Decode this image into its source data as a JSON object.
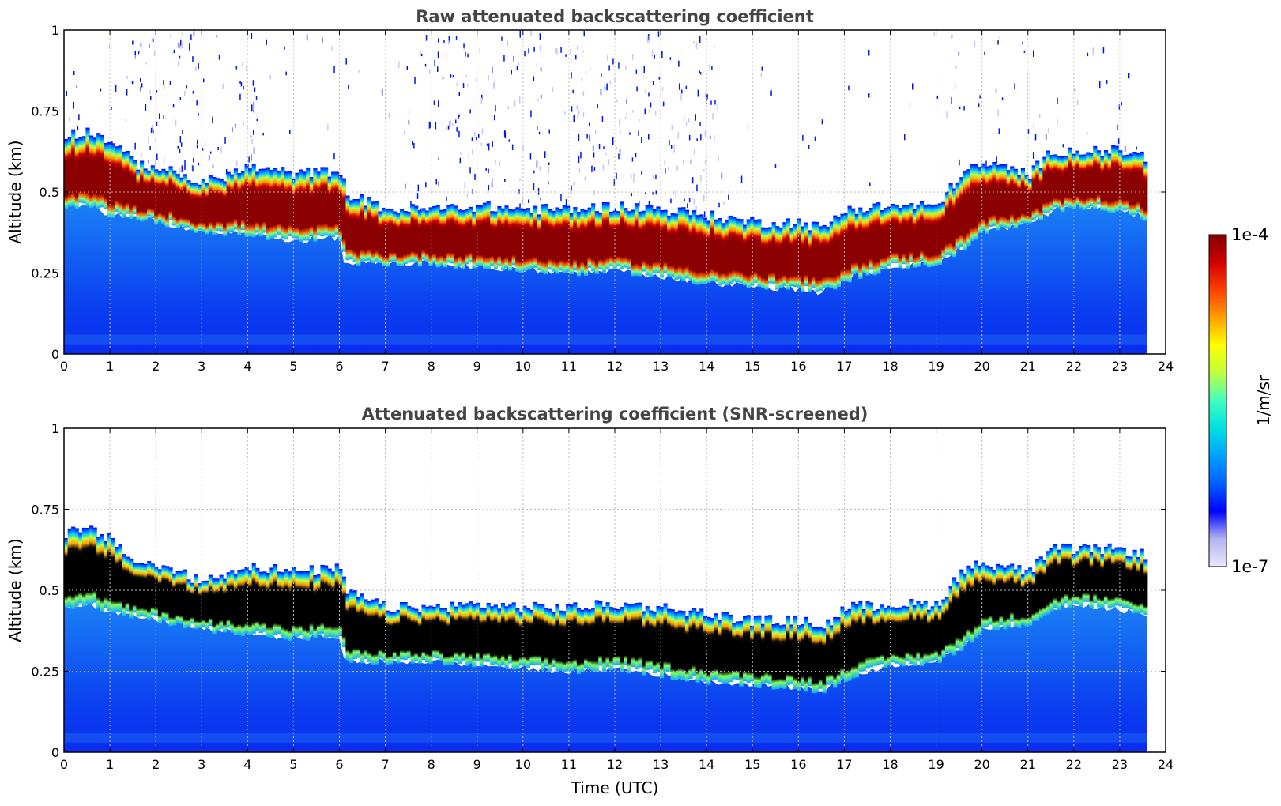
{
  "chart_data": [
    {
      "type": "heatmap",
      "title": "Raw attenuated backscattering coefficient",
      "xlabel": "",
      "ylabel": "Altitude (km)",
      "xlim": [
        0,
        24
      ],
      "ylim": [
        0,
        1
      ],
      "xticks": [
        "0",
        "1",
        "2",
        "3",
        "4",
        "5",
        "6",
        "7",
        "8",
        "9",
        "10",
        "11",
        "12",
        "13",
        "14",
        "15",
        "16",
        "17",
        "18",
        "19",
        "20",
        "21",
        "22",
        "23",
        "24"
      ],
      "yticks": [
        "0",
        "0.25",
        "0.5",
        "0.75",
        "1"
      ],
      "grid": true,
      "data_end_time": 23.6,
      "layer_top_km": {
        "time": [
          0,
          0.5,
          1,
          1.5,
          2,
          3,
          4,
          5,
          6,
          6.1,
          7,
          8,
          9,
          10,
          11,
          12,
          13,
          14,
          15,
          16,
          16.5,
          17,
          18,
          19,
          19.5,
          20,
          21,
          21.5,
          22,
          23,
          23.6
        ],
        "value": [
          0.67,
          0.68,
          0.65,
          0.58,
          0.57,
          0.52,
          0.57,
          0.55,
          0.56,
          0.49,
          0.44,
          0.44,
          0.45,
          0.44,
          0.44,
          0.45,
          0.44,
          0.42,
          0.4,
          0.4,
          0.38,
          0.44,
          0.45,
          0.45,
          0.55,
          0.58,
          0.55,
          0.62,
          0.62,
          0.62,
          0.6
        ]
      },
      "layer_bottom_km": {
        "time": [
          0,
          0.5,
          1,
          1.5,
          2,
          3,
          4,
          5,
          6,
          6.1,
          7,
          8,
          9,
          10,
          11,
          12,
          13,
          14,
          15,
          16,
          16.5,
          17,
          18,
          19,
          19.5,
          20,
          21,
          21.5,
          22,
          23,
          23.6
        ],
        "value": [
          0.45,
          0.46,
          0.43,
          0.42,
          0.41,
          0.38,
          0.37,
          0.35,
          0.36,
          0.28,
          0.28,
          0.28,
          0.27,
          0.26,
          0.25,
          0.26,
          0.24,
          0.22,
          0.21,
          0.2,
          0.19,
          0.23,
          0.27,
          0.28,
          0.32,
          0.38,
          0.4,
          0.44,
          0.46,
          0.44,
          0.42
        ]
      }
    },
    {
      "type": "heatmap",
      "title": "Attenuated backscattering coefficient (SNR-screened)",
      "xlabel": "Time (UTC)",
      "ylabel": "Altitude (km)",
      "xlim": [
        0,
        24
      ],
      "ylim": [
        0,
        1
      ],
      "xticks": [
        "0",
        "1",
        "2",
        "3",
        "4",
        "5",
        "6",
        "7",
        "8",
        "9",
        "10",
        "11",
        "12",
        "13",
        "14",
        "15",
        "16",
        "17",
        "18",
        "19",
        "20",
        "21",
        "22",
        "23",
        "24"
      ],
      "yticks": [
        "0",
        "0.25",
        "0.5",
        "0.75",
        "1"
      ],
      "grid": true,
      "data_end_time": 23.6,
      "saturated_color": "#000000"
    }
  ],
  "colorbar": {
    "label": "1/m/sr",
    "max_label": "1e-4",
    "min_label": "1e-7",
    "scale": "log",
    "range": [
      1e-07,
      0.0001
    ],
    "stops": [
      "#e8e8fb",
      "#b4b4f0",
      "#0000ff",
      "#0060ff",
      "#00a0ff",
      "#00e0e0",
      "#40ffc0",
      "#c0ff40",
      "#ffff00",
      "#ffa000",
      "#ff4000",
      "#d00000",
      "#800000"
    ]
  },
  "colors": {
    "background_low": "#0a2cf0",
    "background_mid": "#1a7ff5",
    "layer_edge": "#00d8ff",
    "layer_core_raw": "#8b0000",
    "layer_core_screened": "#000000",
    "noise": "#0018e0"
  }
}
